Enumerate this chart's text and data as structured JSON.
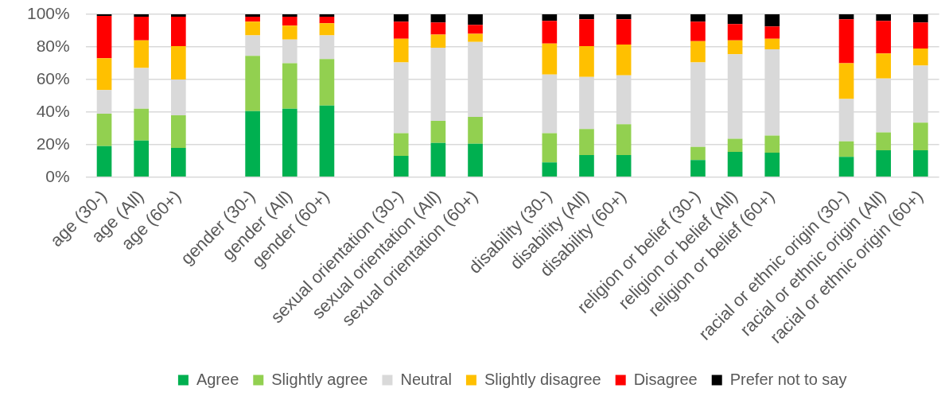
{
  "chart_data": {
    "type": "bar",
    "stacked": true,
    "categories": [
      "age (30-)",
      "age (All)",
      "age (60+)",
      null,
      "gender (30-)",
      "gender (All)",
      "gender (60+)",
      null,
      "sexual orientation (30-)",
      "sexual orientation (All)",
      "sexual orientation (60+)",
      null,
      "disability (30-)",
      "disability (All)",
      "disability (60+)",
      null,
      "religion or belief (30-)",
      "religion or belief (All)",
      "religion or belief (60+)",
      null,
      "racial or ethnic origin (30-)",
      "racial or ethnic origin (All)",
      "racial or ethnic origin (60+)"
    ],
    "series": [
      {
        "name": "Agree",
        "color": "#00b050",
        "values": [
          19,
          22.5,
          18,
          null,
          40.5,
          42,
          44,
          null,
          13,
          21,
          20.5,
          null,
          9,
          13.5,
          13.5,
          null,
          10.5,
          15.5,
          15,
          null,
          12.5,
          16.5,
          16.5
        ]
      },
      {
        "name": "Slightly agree",
        "color": "#92d050",
        "values": [
          20,
          19.5,
          20,
          null,
          34,
          28,
          28.5,
          null,
          14,
          13.5,
          16.5,
          null,
          18,
          16,
          19,
          null,
          8,
          8,
          10.5,
          null,
          9.5,
          11,
          17
        ]
      },
      {
        "name": "Neutral",
        "color": "#d9d9d9",
        "values": [
          14.5,
          25,
          22,
          null,
          12.5,
          14.5,
          14.5,
          null,
          43.5,
          45,
          46,
          null,
          36,
          32,
          30,
          null,
          52,
          52,
          53,
          null,
          26,
          33,
          35
        ]
      },
      {
        "name": "Slightly disagree",
        "color": "#ffc000",
        "values": [
          19.5,
          17,
          20.5,
          null,
          8.5,
          8.5,
          7.5,
          null,
          14.5,
          8,
          5,
          null,
          19,
          19,
          19,
          null,
          13,
          8.5,
          6.5,
          null,
          22,
          15.5,
          10.5
        ]
      },
      {
        "name": "Disagree",
        "color": "#ff0000",
        "values": [
          26,
          14.5,
          18,
          null,
          3,
          5.5,
          4,
          null,
          10.5,
          7.5,
          5.5,
          null,
          14,
          16.5,
          15.5,
          null,
          12,
          10,
          7.5,
          null,
          27,
          20,
          16
        ]
      },
      {
        "name": "Prefer not to say",
        "color": "#000000",
        "values": [
          1,
          1.5,
          1.5,
          null,
          1.5,
          1.5,
          1.5,
          null,
          4.5,
          5,
          6.5,
          null,
          4,
          3,
          3,
          null,
          4.5,
          6,
          7.5,
          null,
          3,
          4,
          5
        ]
      }
    ],
    "ylim": [
      0,
      100
    ],
    "yticks": [
      {
        "value": 0,
        "label": "0%"
      },
      {
        "value": 20,
        "label": "20%"
      },
      {
        "value": 40,
        "label": "40%"
      },
      {
        "value": 60,
        "label": "60%"
      },
      {
        "value": 80,
        "label": "80%"
      },
      {
        "value": 100,
        "label": "100%"
      }
    ],
    "grid": "y",
    "legend": "bottom"
  }
}
